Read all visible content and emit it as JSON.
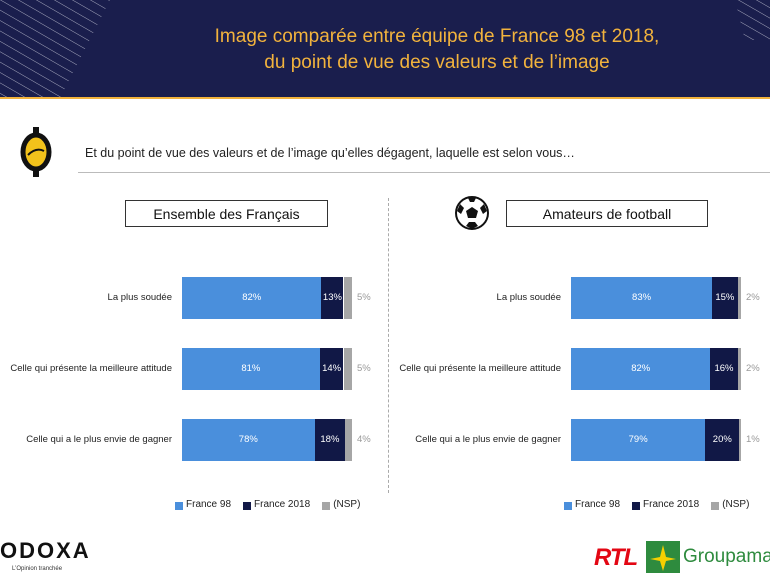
{
  "header": {
    "title": "Image comparée entre équipe de France 98 et 2018, du point de vue des valeurs et de l’image"
  },
  "question": "Et du point de vue des valeurs et de l’image qu’elles dégagent, laquelle est selon vous…",
  "chart_data": [
    {
      "type": "bar",
      "orientation": "horizontal",
      "stacked": true,
      "title": "Ensemble des Français",
      "categories": [
        "La plus soudée",
        "Celle qui présente la meilleure attitude",
        "Celle qui a le plus envie de gagner"
      ],
      "xlim": [
        0,
        100
      ],
      "series": [
        {
          "name": "France 98",
          "color": "#4a8fdc",
          "values": [
            82,
            81,
            78
          ],
          "value_labels": [
            "82%",
            "81%",
            "78%"
          ]
        },
        {
          "name": "France 2018",
          "color": "#111846",
          "values": [
            13,
            14,
            18
          ],
          "value_labels": [
            "13%",
            "14%",
            "18%"
          ]
        },
        {
          "name": "(NSP)",
          "color": "#a6a6a6",
          "values": [
            5,
            5,
            4
          ],
          "value_labels": [
            "5%",
            "5%",
            "4%"
          ]
        }
      ]
    },
    {
      "type": "bar",
      "orientation": "horizontal",
      "stacked": true,
      "title": "Amateurs de football",
      "categories": [
        "La plus soudée",
        "Celle qui présente la meilleure attitude",
        "Celle qui a le plus envie de gagner"
      ],
      "xlim": [
        0,
        100
      ],
      "series": [
        {
          "name": "France 98",
          "color": "#4a8fdc",
          "values": [
            83,
            82,
            79
          ],
          "value_labels": [
            "83%",
            "82%",
            "79%"
          ]
        },
        {
          "name": "France 2018",
          "color": "#111846",
          "values": [
            15,
            16,
            20
          ],
          "value_labels": [
            "15%",
            "16%",
            "20%"
          ]
        },
        {
          "name": "(NSP)",
          "color": "#a6a6a6",
          "values": [
            2,
            2,
            1
          ],
          "value_labels": [
            "2%",
            "2%",
            "1%"
          ]
        }
      ]
    }
  ],
  "footer": {
    "brand": "ODOXA",
    "tagline": "L’Opinion tranchée",
    "partner1": "RTL",
    "partner2": "Groupama"
  }
}
